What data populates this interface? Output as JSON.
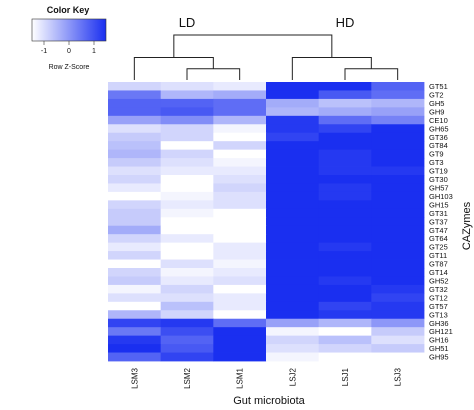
{
  "chart_data": {
    "type": "heatmap",
    "xlabel": "Gut microbiota",
    "ylabel": "CAZymes",
    "columns": [
      "LSM3",
      "LSM2",
      "LSM1",
      "LSJ2",
      "LSJ1",
      "LSJ3"
    ],
    "rows": [
      "GT51",
      "GT2",
      "GH5",
      "GH9",
      "CE10",
      "GH65",
      "GT36",
      "GT84",
      "GT9",
      "GT3",
      "GT19",
      "GT30",
      "GH57",
      "GH103",
      "GH15",
      "GT31",
      "GT37",
      "GT47",
      "GT64",
      "GT25",
      "GT11",
      "GT87",
      "GT14",
      "GH52",
      "GT32",
      "GT12",
      "GT57",
      "GT13",
      "GH36",
      "GH121",
      "GH16",
      "GH51",
      "GH95"
    ],
    "values": [
      [
        -0.6,
        -0.7,
        -0.8,
        1.6,
        1.2,
        0.5
      ],
      [
        0.3,
        -0.3,
        -0.2,
        1.5,
        0.6,
        0.4
      ],
      [
        0.5,
        0.5,
        0.4,
        -0.2,
        -0.4,
        -0.3
      ],
      [
        0.5,
        0.6,
        0.4,
        -0.3,
        -0.2,
        -0.1
      ],
      [
        -0.1,
        0.1,
        -0.3,
        0.9,
        0.4,
        0.2
      ],
      [
        -0.7,
        -0.6,
        -0.9,
        0.9,
        0.8,
        1.3
      ],
      [
        -0.5,
        -0.6,
        -1.0,
        0.8,
        1.0,
        1.2
      ],
      [
        -0.4,
        -1.4,
        -0.6,
        1.2,
        1.0,
        1.3
      ],
      [
        -0.3,
        -0.6,
        -1.0,
        1.0,
        0.9,
        1.0
      ],
      [
        -0.5,
        -0.7,
        -0.9,
        1.3,
        0.9,
        1.0
      ],
      [
        -0.7,
        -0.8,
        -0.8,
        1.5,
        0.9,
        0.9
      ],
      [
        -0.6,
        -1.0,
        -0.7,
        1.4,
        1.0,
        1.1
      ],
      [
        -0.8,
        -1.0,
        -0.6,
        1.3,
        0.9,
        1.0
      ],
      [
        -1.0,
        -0.9,
        -0.7,
        1.2,
        0.9,
        1.0
      ],
      [
        -0.6,
        -0.8,
        -0.7,
        1.1,
        1.0,
        1.1
      ],
      [
        -0.5,
        -0.9,
        -1.5,
        1.1,
        1.1,
        1.2
      ],
      [
        -0.5,
        -1.0,
        -1.3,
        1.0,
        1.1,
        1.2
      ],
      [
        -0.2,
        -1.0,
        -1.1,
        1.3,
        1.0,
        1.0
      ],
      [
        -0.6,
        -0.8,
        -1.1,
        1.2,
        1.0,
        1.0
      ],
      [
        -0.8,
        -1.0,
        -0.8,
        1.5,
        0.9,
        1.0
      ],
      [
        -0.6,
        -1.0,
        -0.8,
        1.1,
        1.1,
        1.2
      ],
      [
        -1.0,
        -0.7,
        -0.9,
        1.4,
        1.0,
        1.1
      ],
      [
        -0.6,
        -0.9,
        -0.8,
        1.4,
        1.0,
        1.1
      ],
      [
        -0.5,
        -0.8,
        -0.7,
        1.4,
        0.9,
        1.1
      ],
      [
        -0.9,
        -0.6,
        -1.0,
        1.4,
        1.1,
        0.9
      ],
      [
        -0.7,
        -0.7,
        -0.8,
        1.4,
        1.1,
        0.8
      ],
      [
        -1.2,
        -0.4,
        -0.8,
        1.4,
        0.8,
        0.9
      ],
      [
        -0.3,
        -0.6,
        -1.1,
        1.0,
        0.9,
        0.9
      ],
      [
        0.8,
        0.9,
        0.4,
        -0.1,
        -0.3,
        0.0
      ],
      [
        0.3,
        0.7,
        1.0,
        -0.9,
        -1.2,
        -0.5
      ],
      [
        0.9,
        0.5,
        1.1,
        -0.6,
        -0.4,
        -0.7
      ],
      [
        1.2,
        0.6,
        1.0,
        -0.7,
        -0.6,
        -0.5
      ],
      [
        0.5,
        0.8,
        1.3,
        -0.9,
        -1.0,
        -1.0
      ]
    ],
    "col_dendrogram": {
      "nodes": [
        {
          "left": 1,
          "right": 2,
          "height": 1
        },
        {
          "left": 0,
          "right": 6,
          "height": 2
        },
        {
          "left": 4,
          "right": 5,
          "height": 1
        },
        {
          "left": 3,
          "right": 8,
          "height": 2
        },
        {
          "left": 7,
          "right": 9,
          "height": 4
        }
      ]
    },
    "row_dendrogram": "none",
    "group_labels": [
      {
        "text": "LD",
        "columns": [
          0,
          1,
          2
        ]
      },
      {
        "text": "HD",
        "columns": [
          3,
          4,
          5
        ]
      }
    ],
    "color_key": {
      "title": "Color Key",
      "subtitle": "Row Z-Score",
      "ticks": [
        -1,
        0,
        1
      ],
      "low_color": "#ffffff",
      "high_color": "#1a2ff0"
    }
  }
}
